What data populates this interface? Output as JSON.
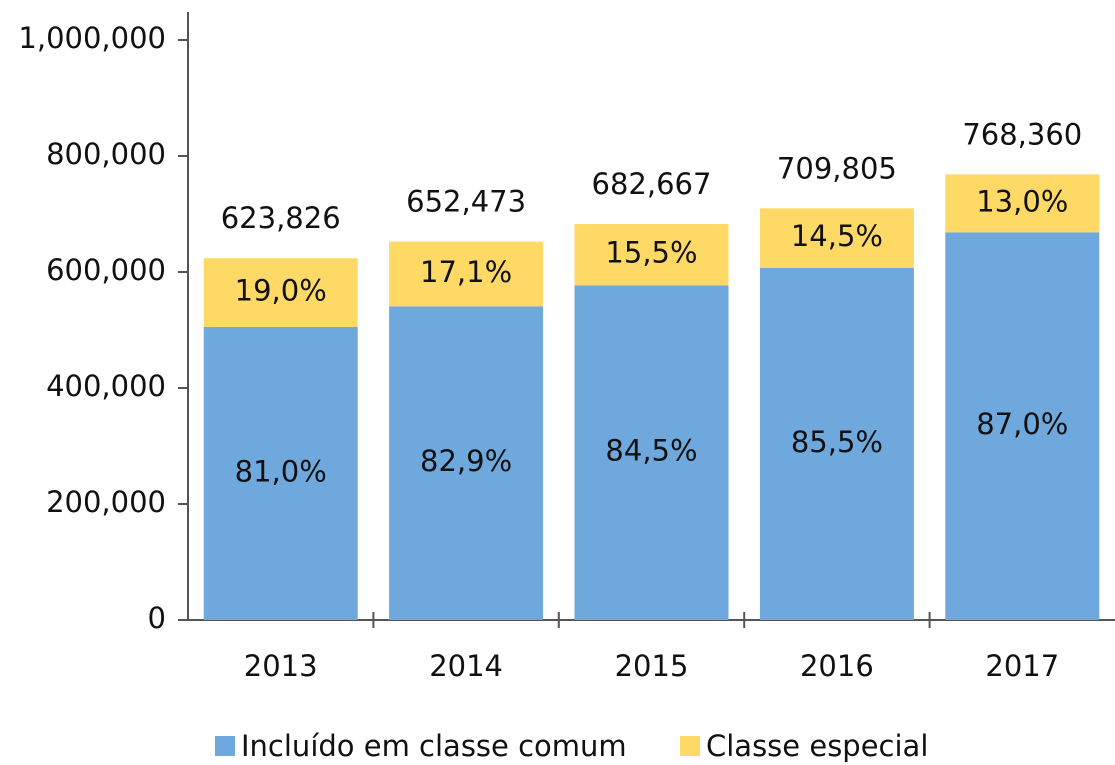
{
  "chart_data": {
    "type": "stacked_bar",
    "categories": [
      "2013",
      "2014",
      "2015",
      "2016",
      "2017"
    ],
    "series": [
      {
        "name": "Incluído em classe comum",
        "color": "#6fa8dc",
        "values": [
          505299,
          540900,
          576854,
          606883,
          668473
        ],
        "share_labels": [
          "81,0%",
          "82,9%",
          "84,5%",
          "85,5%",
          "87,0%"
        ]
      },
      {
        "name": "Classe especial",
        "color": "#ffd966",
        "values": [
          118527,
          111573,
          105813,
          102922,
          99887
        ],
        "share_labels": [
          "19,0%",
          "17,1%",
          "15,5%",
          "14,5%",
          "13,0%"
        ]
      }
    ],
    "totals": [
      623826,
      652473,
      682667,
      709805,
      768360
    ],
    "total_labels": [
      "623,826",
      "652,473",
      "682,667",
      "709,805",
      "768,360"
    ],
    "ylim": [
      0,
      1000000
    ],
    "yticks": [
      0,
      {
        "value": 200000,
        "label": "200,000"
      },
      {
        "value": 400000,
        "label": "400,000"
      },
      {
        "value": 600000,
        "label": "600,000"
      },
      {
        "value": 800000,
        "label": "800,000"
      },
      {
        "value": 1000000,
        "label": "1,000,000"
      }
    ],
    "legend": "bottom"
  }
}
